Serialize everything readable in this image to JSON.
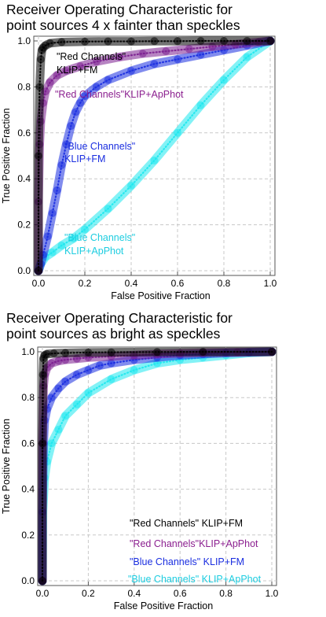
{
  "chart_data": [
    {
      "type": "line",
      "title": "Receiver Operating Characteristic for point sources 4 x fainter than speckles",
      "title_lines": [
        "Receiver Operating Characteristic for",
        "point sources 4 x fainter than speckles"
      ],
      "xlabel": "False Positive Fraction",
      "ylabel": "True Positive Fraction",
      "xlim": [
        0,
        1
      ],
      "ylim": [
        0,
        1
      ],
      "xticks": [
        "0.0",
        "0.2",
        "0.4",
        "0.6",
        "0.8",
        "1.0"
      ],
      "yticks": [
        "0.0",
        "0.2",
        "0.4",
        "0.6",
        "0.8",
        "1.0"
      ],
      "grid": true,
      "legend_position": "inline labels near curves",
      "series": [
        {
          "key": "red_fm",
          "color": "#000000",
          "label_lines": [
            "\"Red Channels\"",
            "KLIP+FM"
          ],
          "label_color": "#000000",
          "x": [
            0,
            0,
            0.005,
            0.01,
            0.015,
            0.02,
            0.03,
            0.05,
            0.1,
            0.2,
            0.3,
            0.4,
            0.5,
            0.6,
            0.7,
            0.8,
            0.9,
            1.0
          ],
          "y": [
            0,
            0.5,
            0.8,
            0.92,
            0.96,
            0.97,
            0.98,
            0.99,
            0.995,
            0.997,
            0.998,
            0.998,
            0.999,
            0.999,
            1.0,
            1.0,
            1.0,
            1.0
          ]
        },
        {
          "key": "red_apphot",
          "color": "#7b1f8f",
          "label_lines": [
            "\"Red Channels\"KLIP+ApPhot"
          ],
          "label_color": "#8b1f8f",
          "x": [
            0,
            0,
            0.005,
            0.01,
            0.02,
            0.03,
            0.05,
            0.08,
            0.12,
            0.18,
            0.25,
            0.35,
            0.45,
            0.55,
            0.65,
            0.75,
            0.85,
            0.95,
            1.0
          ],
          "y": [
            0,
            0.3,
            0.55,
            0.65,
            0.73,
            0.78,
            0.82,
            0.85,
            0.87,
            0.89,
            0.91,
            0.93,
            0.945,
            0.955,
            0.965,
            0.975,
            0.985,
            0.995,
            1.0
          ]
        },
        {
          "key": "blue_fm",
          "color": "#1a2ee0",
          "label_lines": [
            "\"Blue Channels\"",
            "KLIP+FM"
          ],
          "label_color": "#1a2ee0",
          "x": [
            0,
            0.01,
            0.02,
            0.04,
            0.06,
            0.08,
            0.1,
            0.12,
            0.14,
            0.16,
            0.18,
            0.2,
            0.25,
            0.3,
            0.4,
            0.5,
            0.6,
            0.7,
            0.8,
            0.9,
            1.0
          ],
          "y": [
            0,
            0.03,
            0.07,
            0.15,
            0.25,
            0.35,
            0.46,
            0.55,
            0.63,
            0.69,
            0.73,
            0.76,
            0.8,
            0.83,
            0.87,
            0.9,
            0.92,
            0.94,
            0.96,
            0.98,
            1.0
          ]
        },
        {
          "key": "blue_apphot",
          "color": "#1ee8ee",
          "label_lines": [
            "\"Blue Channels\"",
            "KLIP+ApPhot"
          ],
          "label_color": "#1ecde0",
          "x": [
            0,
            0.01,
            0.03,
            0.06,
            0.1,
            0.15,
            0.2,
            0.3,
            0.4,
            0.5,
            0.6,
            0.7,
            0.8,
            0.9,
            1.0
          ],
          "y": [
            0,
            0.03,
            0.06,
            0.08,
            0.11,
            0.14,
            0.18,
            0.27,
            0.37,
            0.48,
            0.6,
            0.72,
            0.83,
            0.93,
            1.0
          ]
        }
      ]
    },
    {
      "type": "line",
      "title": "Receiver Operating Characteristic for point sources as bright as speckles",
      "title_lines": [
        "Receiver Operating Characteristic for",
        "point sources as bright as speckles"
      ],
      "xlabel": "False Positive Fraction",
      "ylabel": "True Positive Fraction",
      "xlim": [
        0,
        1
      ],
      "ylim": [
        0,
        1
      ],
      "xticks": [
        "0.0",
        "0.2",
        "0.4",
        "0.6",
        "0.8",
        "1.0"
      ],
      "yticks": [
        "0.0",
        "0.2",
        "0.4",
        "0.6",
        "0.8",
        "1.0"
      ],
      "grid": true,
      "legend_position": "bottom-right",
      "series": [
        {
          "key": "red_fm",
          "color": "#000000",
          "label_lines": [
            "\"Red Channels\" KLIP+FM"
          ],
          "label_color": "#000000",
          "x": [
            0,
            0,
            0.002,
            0.005,
            0.01,
            0.02,
            0.05,
            0.1,
            0.2,
            0.3,
            0.5,
            0.7,
            1.0
          ],
          "y": [
            0,
            0.6,
            0.9,
            0.97,
            0.985,
            0.99,
            0.993,
            0.995,
            0.997,
            0.998,
            0.999,
            1.0,
            1.0
          ]
        },
        {
          "key": "red_apphot",
          "color": "#7b1f8f",
          "label_lines": [
            "\"Red Channels\"KLIP+ApPhot"
          ],
          "label_color": "#8b1f8f",
          "x": [
            0,
            0,
            0.005,
            0.01,
            0.02,
            0.04,
            0.07,
            0.1,
            0.15,
            0.2,
            0.3,
            0.4,
            0.5,
            0.6,
            0.7,
            0.85,
            1.0
          ],
          "y": [
            0,
            0.6,
            0.85,
            0.9,
            0.93,
            0.95,
            0.96,
            0.965,
            0.97,
            0.975,
            0.98,
            0.985,
            0.99,
            0.993,
            0.996,
            0.998,
            1.0
          ]
        },
        {
          "key": "blue_fm",
          "color": "#1a2ee0",
          "label_lines": [
            "\"Blue Channels\" KLIP+FM"
          ],
          "label_color": "#1a2ee0",
          "x": [
            0,
            0,
            0.005,
            0.01,
            0.02,
            0.04,
            0.07,
            0.1,
            0.15,
            0.2,
            0.25,
            0.3,
            0.4,
            0.5,
            0.6,
            0.7,
            0.8,
            0.9,
            1.0
          ],
          "y": [
            0,
            0.3,
            0.6,
            0.7,
            0.75,
            0.8,
            0.84,
            0.87,
            0.9,
            0.92,
            0.94,
            0.95,
            0.965,
            0.975,
            0.985,
            0.99,
            0.995,
            0.998,
            1.0
          ]
        },
        {
          "key": "blue_apphot",
          "color": "#1ee8ee",
          "label_lines": [
            "\"Blue Channels\" KLIP+ApPhot"
          ],
          "label_color": "#1ecde0",
          "x": [
            0,
            0.002,
            0.01,
            0.02,
            0.04,
            0.07,
            0.1,
            0.15,
            0.2,
            0.3,
            0.4,
            0.5,
            0.6,
            0.7,
            0.8,
            0.9,
            1.0
          ],
          "y": [
            0,
            0.3,
            0.45,
            0.52,
            0.6,
            0.66,
            0.72,
            0.77,
            0.82,
            0.88,
            0.92,
            0.95,
            0.965,
            0.975,
            0.985,
            0.995,
            1.0
          ]
        }
      ]
    }
  ]
}
